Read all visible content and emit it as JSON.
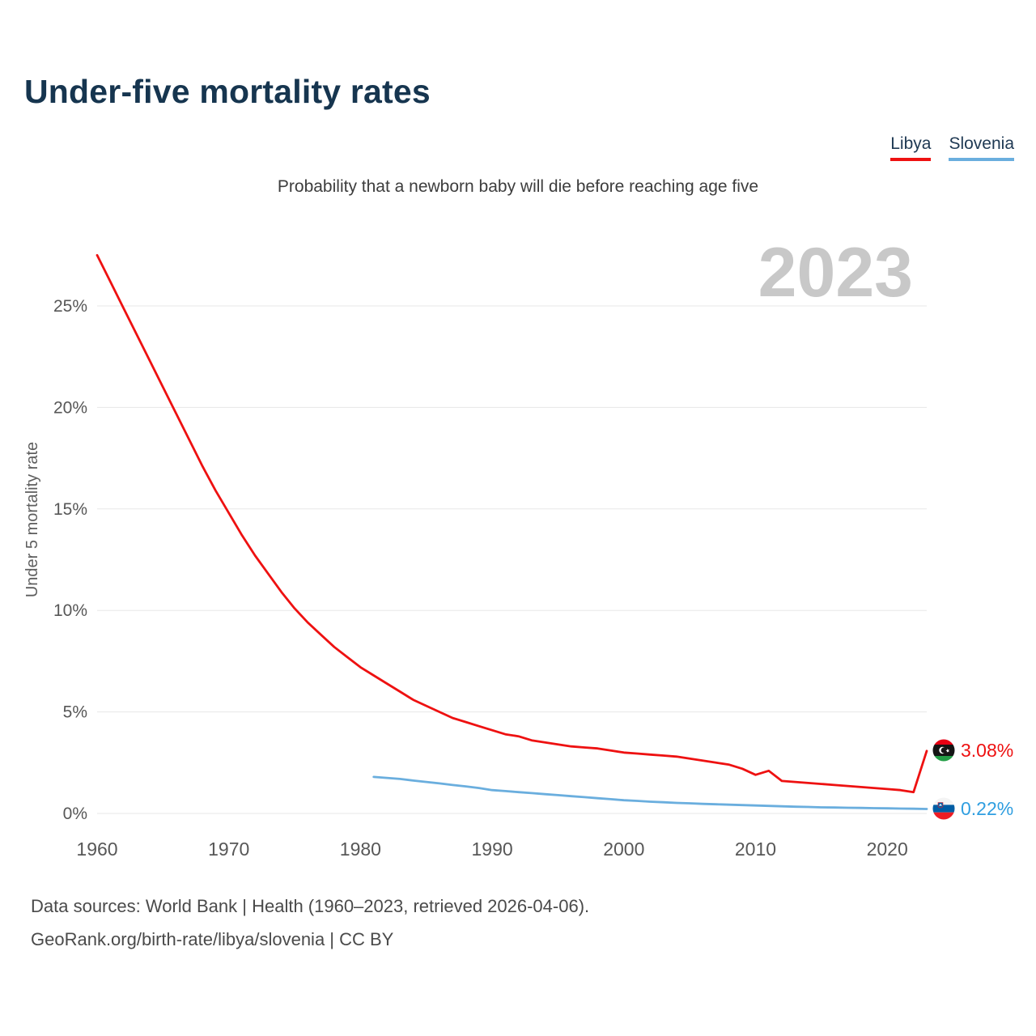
{
  "page": {
    "title": "Under-five mortality rates",
    "subtitle": "Probability that a newborn baby will die before reaching age five",
    "watermark_year": "2023",
    "footer_line1": "Data sources: World Bank | Health (1960–2023, retrieved 2026-04-06).",
    "footer_line2": "GeoRank.org/birth-rate/libya/slovenia | CC BY"
  },
  "legend": {
    "items": [
      {
        "label": "Libya",
        "color": "#ee1111"
      },
      {
        "label": "Slovenia",
        "color": "#6aaede"
      }
    ]
  },
  "chart_data": {
    "type": "line",
    "title": "Under-five mortality rates",
    "subtitle": "Probability that a newborn baby will die before reaching age five",
    "xlabel": "",
    "ylabel": "Under 5 mortality rate",
    "xlim": [
      1960,
      2023
    ],
    "ylim": [
      0,
      28
    ],
    "grid": true,
    "x_ticks": [
      1960,
      1970,
      1980,
      1990,
      2000,
      2010,
      2020
    ],
    "y_ticks": [
      "0%",
      "5%",
      "10%",
      "15%",
      "20%",
      "25%"
    ],
    "y_tick_values": [
      0,
      5,
      10,
      15,
      20,
      25
    ],
    "series": [
      {
        "name": "Libya",
        "color": "#ee1111",
        "x": [
          1960,
          1961,
          1962,
          1963,
          1964,
          1965,
          1966,
          1967,
          1968,
          1969,
          1970,
          1971,
          1972,
          1973,
          1974,
          1975,
          1976,
          1977,
          1978,
          1979,
          1980,
          1981,
          1982,
          1983,
          1984,
          1985,
          1986,
          1987,
          1988,
          1989,
          1990,
          1991,
          1992,
          1993,
          1994,
          1995,
          1996,
          1997,
          1998,
          1999,
          2000,
          2001,
          2002,
          2003,
          2004,
          2005,
          2006,
          2007,
          2008,
          2009,
          2010,
          2011,
          2012,
          2013,
          2014,
          2015,
          2016,
          2017,
          2018,
          2019,
          2020,
          2021,
          2022,
          2023
        ],
        "values": [
          27.5,
          26.2,
          24.9,
          23.6,
          22.3,
          21.0,
          19.7,
          18.4,
          17.1,
          15.9,
          14.8,
          13.7,
          12.7,
          11.8,
          10.9,
          10.1,
          9.4,
          8.8,
          8.2,
          7.7,
          7.2,
          6.8,
          6.4,
          6.0,
          5.6,
          5.3,
          5.0,
          4.7,
          4.5,
          4.3,
          4.1,
          3.9,
          3.8,
          3.6,
          3.5,
          3.4,
          3.3,
          3.25,
          3.2,
          3.1,
          3.0,
          2.95,
          2.9,
          2.85,
          2.8,
          2.7,
          2.6,
          2.5,
          2.4,
          2.2,
          1.9,
          2.1,
          1.6,
          1.55,
          1.5,
          1.45,
          1.4,
          1.35,
          1.3,
          1.25,
          1.2,
          1.15,
          1.05,
          3.08
        ]
      },
      {
        "name": "Slovenia",
        "color": "#6aaede",
        "x": [
          1981,
          1982,
          1983,
          1984,
          1985,
          1986,
          1987,
          1988,
          1989,
          1990,
          1991,
          1992,
          1993,
          1994,
          1995,
          1996,
          1997,
          1998,
          1999,
          2000,
          2001,
          2002,
          2003,
          2004,
          2005,
          2006,
          2007,
          2008,
          2009,
          2010,
          2011,
          2012,
          2013,
          2014,
          2015,
          2016,
          2017,
          2018,
          2019,
          2020,
          2021,
          2022,
          2023
        ],
        "values": [
          1.8,
          1.75,
          1.7,
          1.62,
          1.55,
          1.48,
          1.4,
          1.33,
          1.25,
          1.15,
          1.1,
          1.05,
          1.0,
          0.95,
          0.9,
          0.85,
          0.8,
          0.75,
          0.7,
          0.65,
          0.62,
          0.58,
          0.55,
          0.52,
          0.5,
          0.47,
          0.45,
          0.43,
          0.41,
          0.39,
          0.37,
          0.35,
          0.33,
          0.32,
          0.3,
          0.29,
          0.28,
          0.27,
          0.26,
          0.25,
          0.24,
          0.23,
          0.22
        ]
      }
    ],
    "end_labels": [
      {
        "series": "Libya",
        "text": "3.08%",
        "color": "#ee1111",
        "flag": "libya"
      },
      {
        "series": "Slovenia",
        "text": "0.22%",
        "color": "#2f9ee0",
        "flag": "slovenia"
      }
    ],
    "legend_position": "top-right"
  }
}
